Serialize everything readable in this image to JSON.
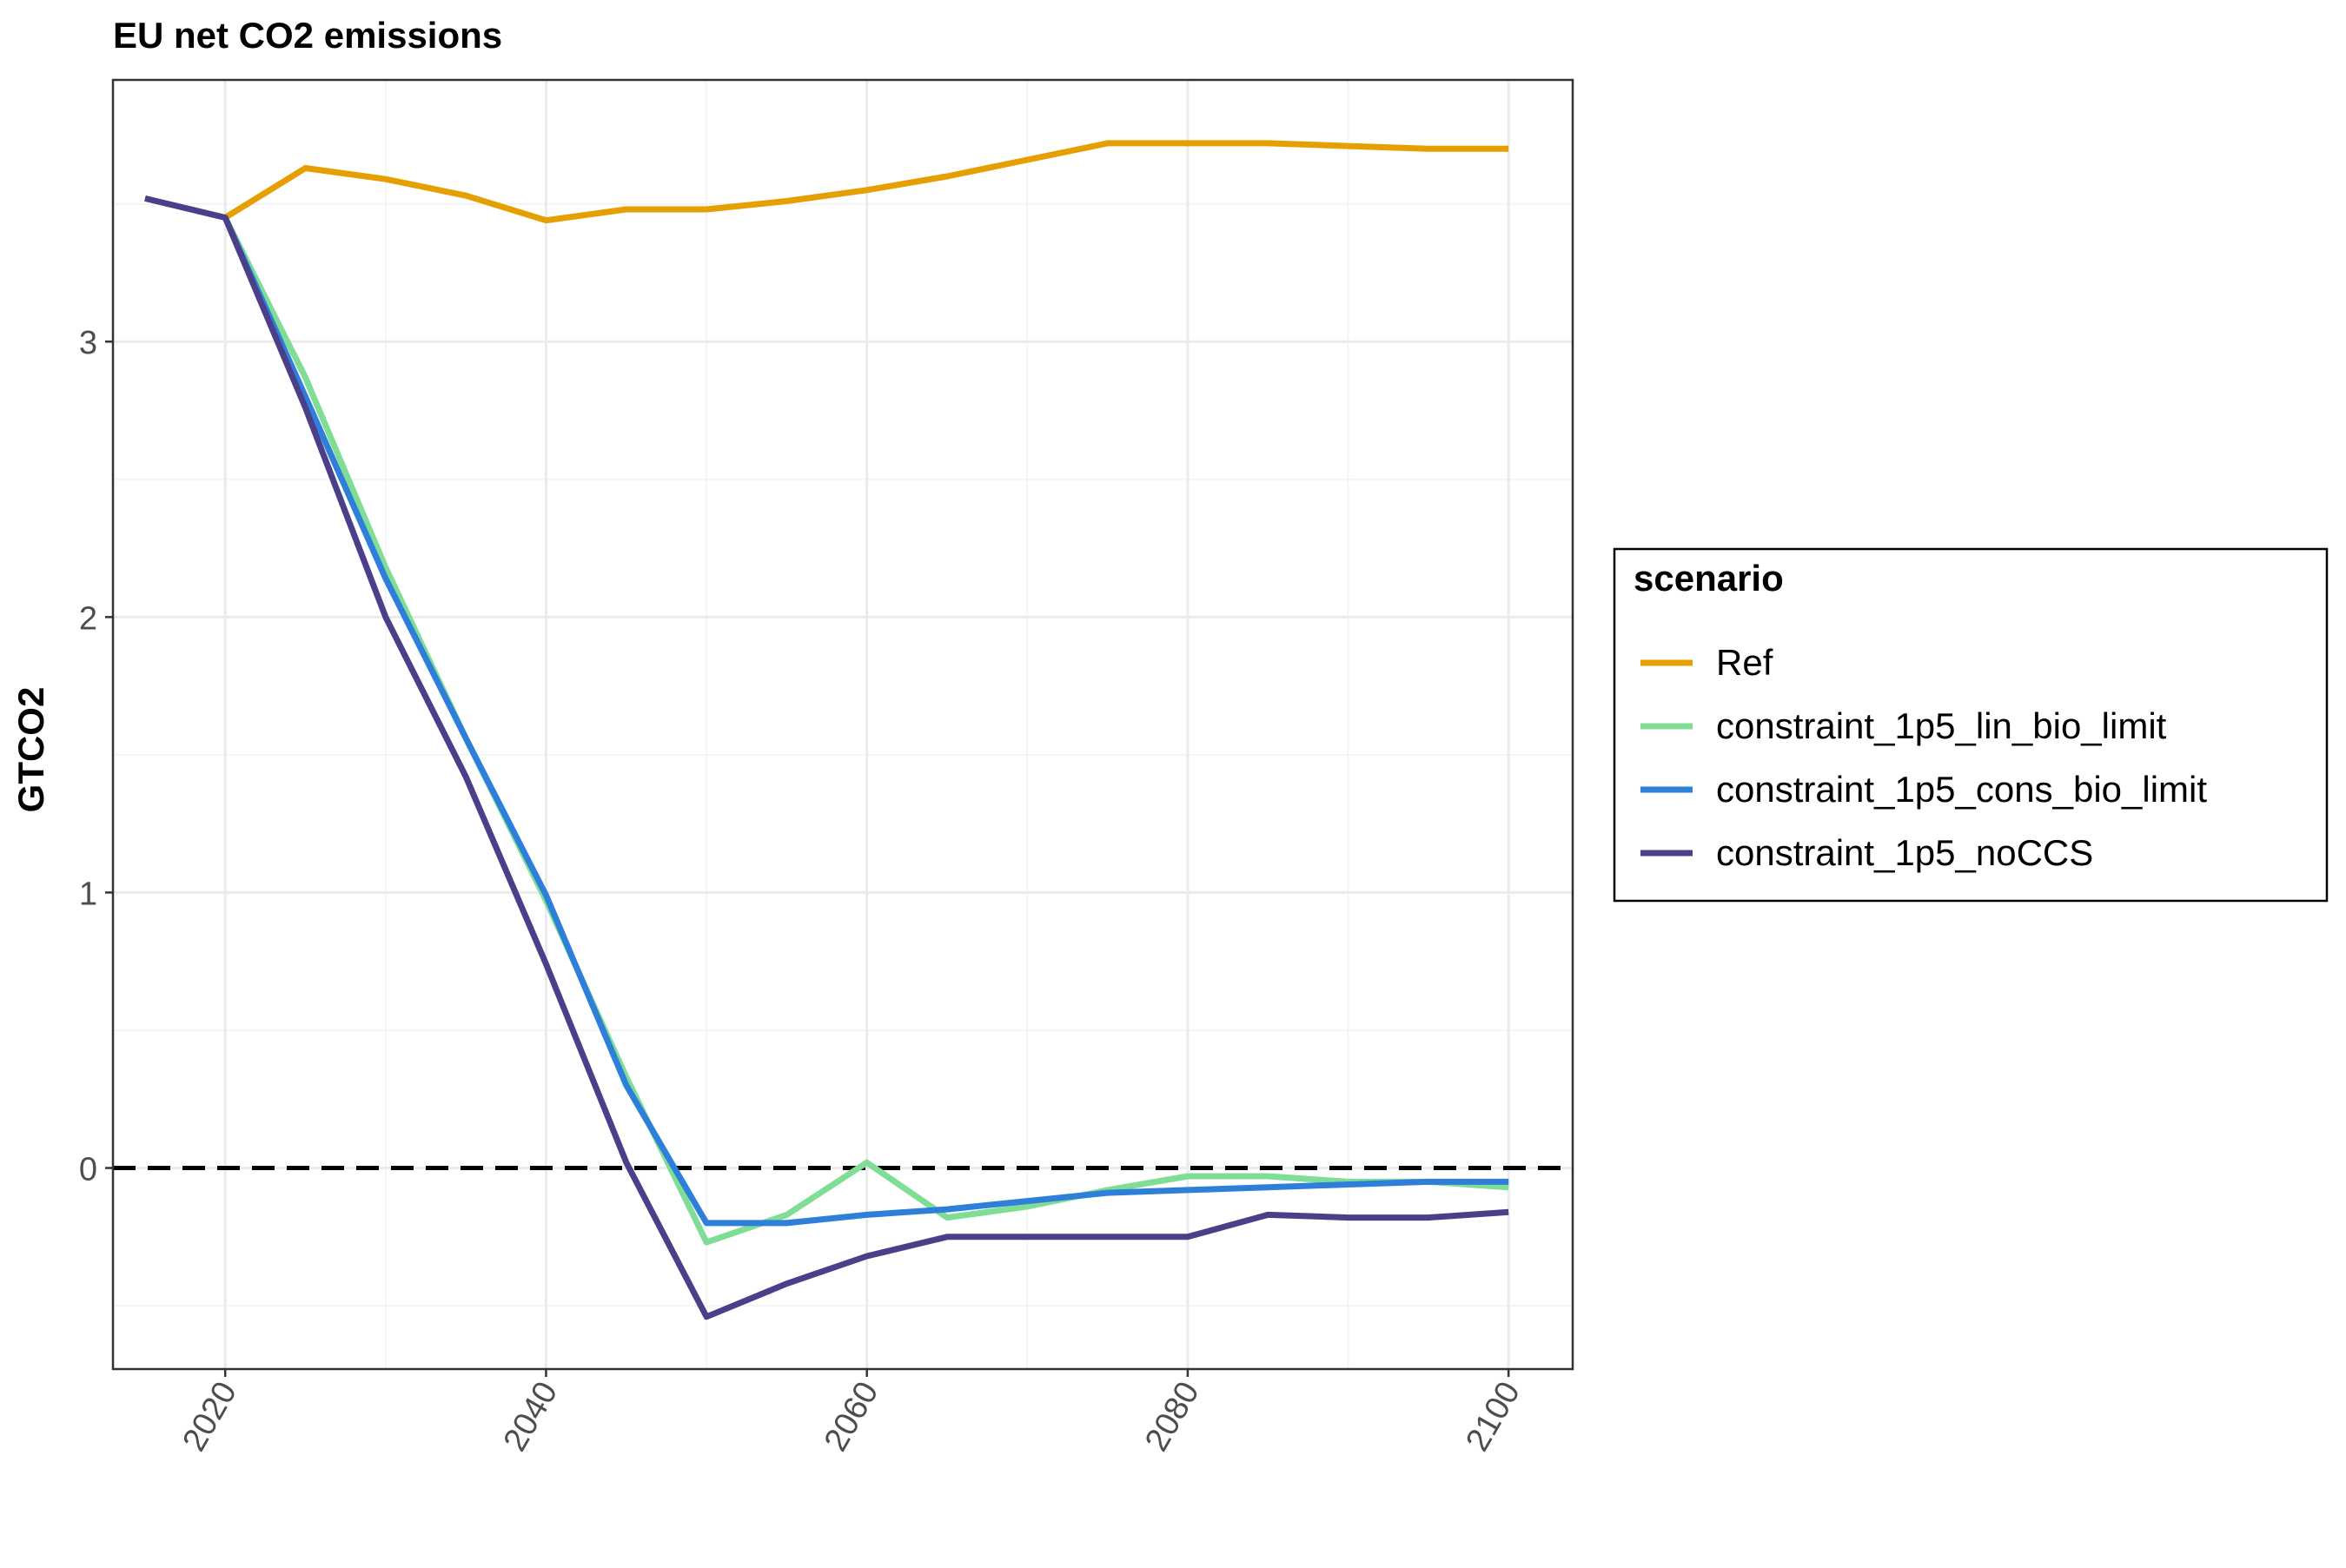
{
  "chart_data": {
    "type": "line",
    "title": "EU net CO2 emissions",
    "xlabel": "",
    "ylabel": "GTCO2",
    "xlim": [
      2013,
      2104
    ],
    "ylim": [
      -0.73,
      3.95
    ],
    "xticks": [
      2020,
      2040,
      2060,
      2080,
      2100
    ],
    "yticks": [
      0,
      1,
      2,
      3
    ],
    "grid": true,
    "reference_line": {
      "y": 0,
      "style": "dashed",
      "color": "#000000"
    },
    "legend": {
      "title": "scenario",
      "placement": "right"
    },
    "x": [
      2015,
      2020,
      2025,
      2030,
      2035,
      2040,
      2045,
      2050,
      2055,
      2060,
      2065,
      2070,
      2075,
      2080,
      2085,
      2090,
      2095,
      2100
    ],
    "series": [
      {
        "name": "Ref",
        "color": "#E69F00",
        "values": [
          null,
          3.45,
          3.63,
          3.59,
          3.53,
          3.44,
          3.48,
          3.48,
          3.51,
          3.55,
          3.6,
          3.66,
          3.72,
          3.72,
          3.72,
          3.71,
          3.7,
          3.7
        ]
      },
      {
        "name": "constraint_1p5_lin_bio_limit",
        "color": "#7FDD95",
        "values": [
          null,
          3.45,
          2.87,
          2.18,
          1.56,
          0.97,
          0.33,
          -0.27,
          -0.17,
          0.02,
          -0.18,
          -0.14,
          -0.08,
          -0.03,
          -0.03,
          -0.05,
          -0.05,
          -0.07
        ]
      },
      {
        "name": "constraint_1p5_cons_bio_limit",
        "color": "#2E7FD9",
        "values": [
          null,
          3.45,
          2.8,
          2.14,
          1.56,
          0.99,
          0.3,
          -0.2,
          -0.2,
          -0.17,
          -0.15,
          -0.12,
          -0.09,
          -0.08,
          -0.07,
          -0.06,
          -0.05,
          -0.05
        ]
      },
      {
        "name": "constraint_1p5_noCCS",
        "color": "#4B3F8A",
        "values": [
          3.52,
          3.45,
          2.76,
          2.0,
          1.42,
          0.74,
          0.02,
          -0.54,
          -0.42,
          -0.32,
          -0.25,
          -0.25,
          -0.25,
          -0.25,
          -0.17,
          -0.18,
          -0.18,
          -0.16
        ]
      }
    ]
  }
}
